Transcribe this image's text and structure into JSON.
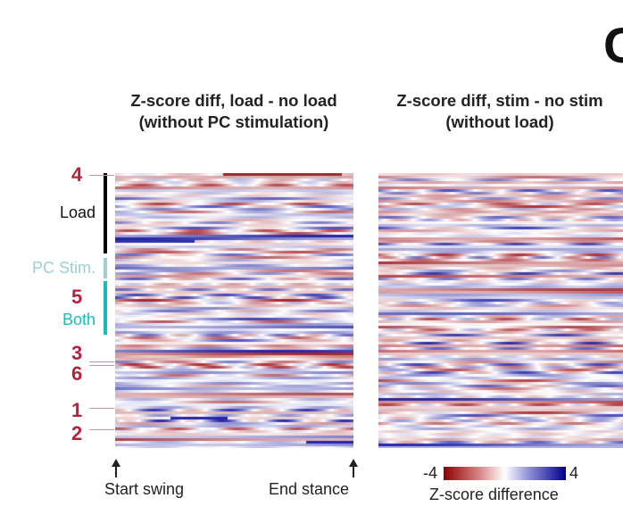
{
  "panel_letter": "C",
  "chart_data": [
    {
      "type": "heatmap",
      "title": "Z-score diff, load - no load\n(without PC stimulation)",
      "x_start_label": "Start swing",
      "x_end_label": "End stance",
      "color_range": [
        -4,
        4
      ],
      "row_groups": [
        {
          "label": "Load",
          "color": "#000000"
        },
        {
          "label": "PC Stim.",
          "color": "#9ecfd0"
        },
        {
          "label": "Both",
          "color": "#17bcbd"
        }
      ],
      "highlighted_rows": [
        "4",
        "5",
        "3",
        "6",
        "1",
        "2"
      ]
    },
    {
      "type": "heatmap",
      "title": "Z-score diff, stim - no stim\n(without load)",
      "color_range": [
        -4,
        4
      ]
    }
  ],
  "colorbar": {
    "min_label": "-4",
    "max_label": "4",
    "label": "Z-score difference",
    "colors": [
      "#8b0000",
      "#ffffff",
      "#00008b"
    ]
  }
}
